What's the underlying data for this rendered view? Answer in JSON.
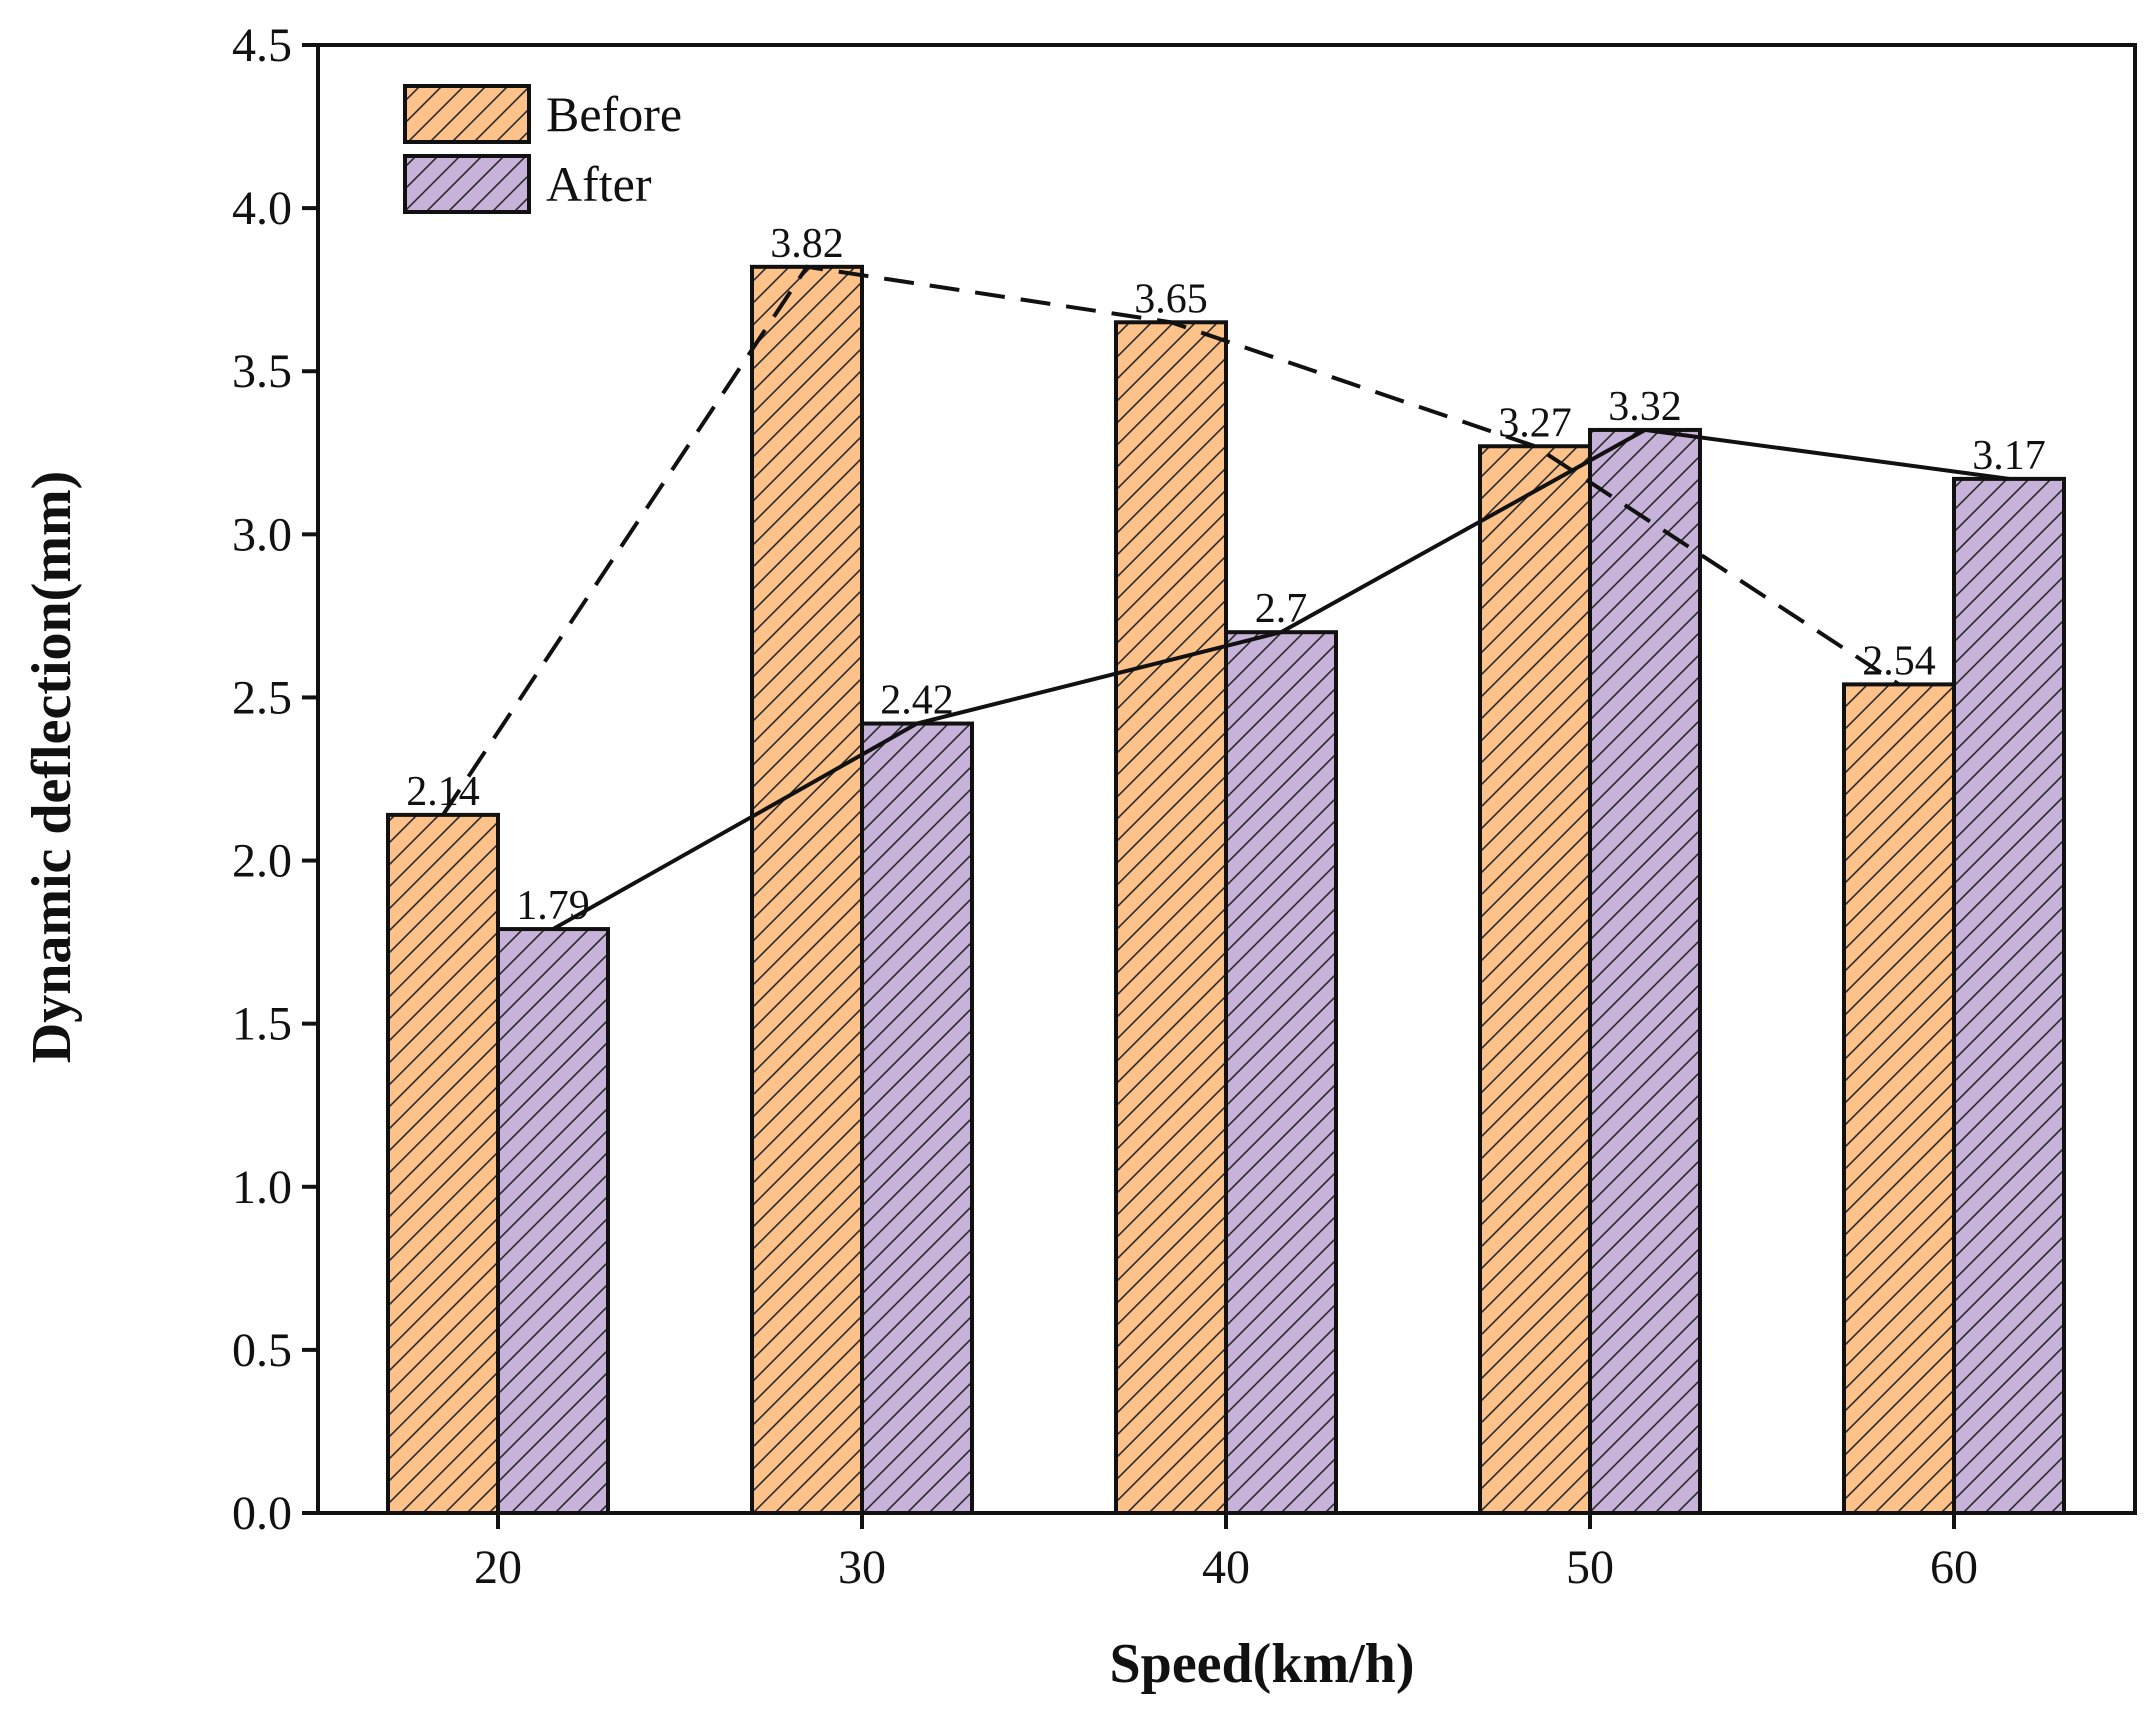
{
  "chart_data": {
    "type": "bar",
    "title": "",
    "xlabel": "Speed(km/h)",
    "ylabel": "Dynamic deflection(mm)",
    "categories": [
      "20",
      "30",
      "40",
      "50",
      "60"
    ],
    "ylim": [
      0,
      4.5
    ],
    "yticks": [
      "0.0",
      "0.5",
      "1.0",
      "1.5",
      "2.0",
      "2.5",
      "3.0",
      "3.5",
      "4.0",
      "4.5"
    ],
    "grid": false,
    "legend_position": "top-left",
    "bar_pattern": "diagonal-hatch",
    "series": [
      {
        "name": "Before",
        "values": [
          2.14,
          3.82,
          3.65,
          3.27,
          2.54
        ],
        "labels": [
          "2.14",
          "3.82",
          "3.65",
          "3.27",
          "2.54"
        ],
        "color": "#fdc18a",
        "trend_line": "dashed"
      },
      {
        "name": "After",
        "values": [
          1.79,
          2.42,
          2.7,
          3.32,
          3.17
        ],
        "labels": [
          "1.79",
          "2.42",
          "2.7",
          "3.32",
          "3.17"
        ],
        "color": "#c7b2d9",
        "trend_line": "solid"
      }
    ]
  }
}
